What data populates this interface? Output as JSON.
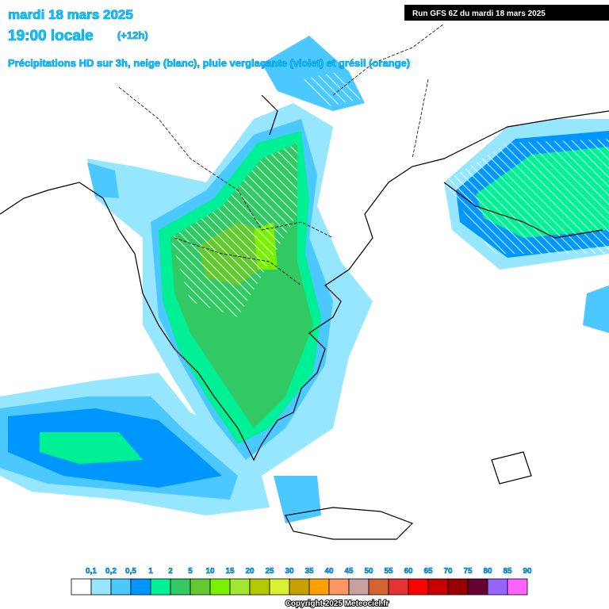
{
  "header": {
    "date": "mardi 18 mars 2025",
    "time": "19:00 locale",
    "offset": "(+12h)",
    "description": "Précipitations HD sur 3h, neige (blanc), pluie verglaçante (violet) et grésil (orange)",
    "run": "Run GFS 6Z du mardi 18 mars 2025"
  },
  "legend": {
    "items": [
      {
        "label": "0,1",
        "color": "#ffffff"
      },
      {
        "label": "0,2",
        "color": "#96e6ff"
      },
      {
        "label": "0,5",
        "color": "#4bc8ff"
      },
      {
        "label": "1",
        "color": "#0096ff"
      },
      {
        "label": "2",
        "color": "#00f096"
      },
      {
        "label": "5",
        "color": "#32c864"
      },
      {
        "label": "10",
        "color": "#64c832"
      },
      {
        "label": "15",
        "color": "#78f000"
      },
      {
        "label": "20",
        "color": "#a0e632"
      },
      {
        "label": "25",
        "color": "#b4c800"
      },
      {
        "label": "30",
        "color": "#dcf032"
      },
      {
        "label": "35",
        "color": "#c8a000"
      },
      {
        "label": "40",
        "color": "#ffa000"
      },
      {
        "label": "45",
        "color": "#ff9664"
      },
      {
        "label": "50",
        "color": "#c8a0a0"
      },
      {
        "label": "55",
        "color": "#d26432"
      },
      {
        "label": "60",
        "color": "#e63232"
      },
      {
        "label": "65",
        "color": "#ff0000"
      },
      {
        "label": "70",
        "color": "#c80000"
      },
      {
        "label": "75",
        "color": "#960000"
      },
      {
        "label": "80",
        "color": "#640032"
      },
      {
        "label": "85",
        "color": "#9664ff"
      },
      {
        "label": "90",
        "color": "#ff64ff"
      }
    ]
  },
  "footer": {
    "copyright": "Copyright 2025 Meteociel.fr"
  }
}
